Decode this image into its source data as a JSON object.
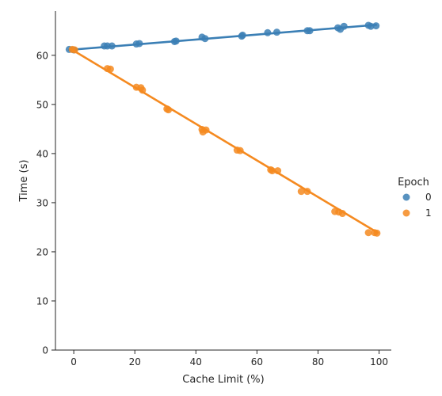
{
  "chart_data": {
    "type": "scatter",
    "title": "",
    "xlabel": "Cache Limit (%)",
    "ylabel": "Time (s)",
    "xlim": [
      -6,
      104
    ],
    "ylim": [
      0,
      69
    ],
    "xticks": [
      0,
      20,
      40,
      60,
      80,
      100
    ],
    "yticks": [
      0,
      10,
      20,
      30,
      40,
      50,
      60
    ],
    "grid": false,
    "legend": {
      "title": "Epoch",
      "placement": "right"
    },
    "series": [
      {
        "name": "0",
        "color": "#3b7fb5",
        "points": [
          [
            -1.5,
            61.2
          ],
          [
            0,
            61.1
          ],
          [
            10,
            61.9
          ],
          [
            11,
            61.9
          ],
          [
            12.5,
            61.9
          ],
          [
            20.5,
            62.3
          ],
          [
            21.5,
            62.4
          ],
          [
            33,
            62.8
          ],
          [
            33.5,
            62.9
          ],
          [
            42,
            63.7
          ],
          [
            43,
            63.4
          ],
          [
            55,
            63.9
          ],
          [
            55.3,
            64.1
          ],
          [
            63.5,
            64.6
          ],
          [
            66.5,
            64.7
          ],
          [
            76.5,
            65.0
          ],
          [
            77.3,
            65.0
          ],
          [
            86.5,
            65.6
          ],
          [
            87.3,
            65.3
          ],
          [
            88.5,
            65.9
          ],
          [
            96.5,
            66.1
          ],
          [
            97.3,
            65.9
          ],
          [
            99,
            66.0
          ]
        ],
        "fit": {
          "x": [
            -1.5,
            99
          ],
          "y": [
            61.1,
            66.2
          ]
        }
      },
      {
        "name": "1",
        "color": "#f58a20",
        "points": [
          [
            -0.5,
            61.2
          ],
          [
            0.3,
            61.1
          ],
          [
            11,
            57.3
          ],
          [
            12,
            57.2
          ],
          [
            20.5,
            53.5
          ],
          [
            22,
            53.4
          ],
          [
            22.5,
            52.9
          ],
          [
            30.5,
            49.1
          ],
          [
            31,
            48.9
          ],
          [
            42,
            44.9
          ],
          [
            42.3,
            44.4
          ],
          [
            43.3,
            44.8
          ],
          [
            53.5,
            40.7
          ],
          [
            54.5,
            40.6
          ],
          [
            64.5,
            36.7
          ],
          [
            65,
            36.5
          ],
          [
            66.8,
            36.5
          ],
          [
            74.5,
            32.3
          ],
          [
            76.5,
            32.3
          ],
          [
            85.5,
            28.2
          ],
          [
            86.8,
            28.1
          ],
          [
            88,
            27.8
          ],
          [
            96.5,
            23.9
          ],
          [
            98.5,
            23.9
          ],
          [
            99.3,
            23.8
          ]
        ],
        "fit": {
          "x": [
            -1,
            99.5
          ],
          "y": [
            61.3,
            23.9
          ]
        }
      }
    ]
  }
}
